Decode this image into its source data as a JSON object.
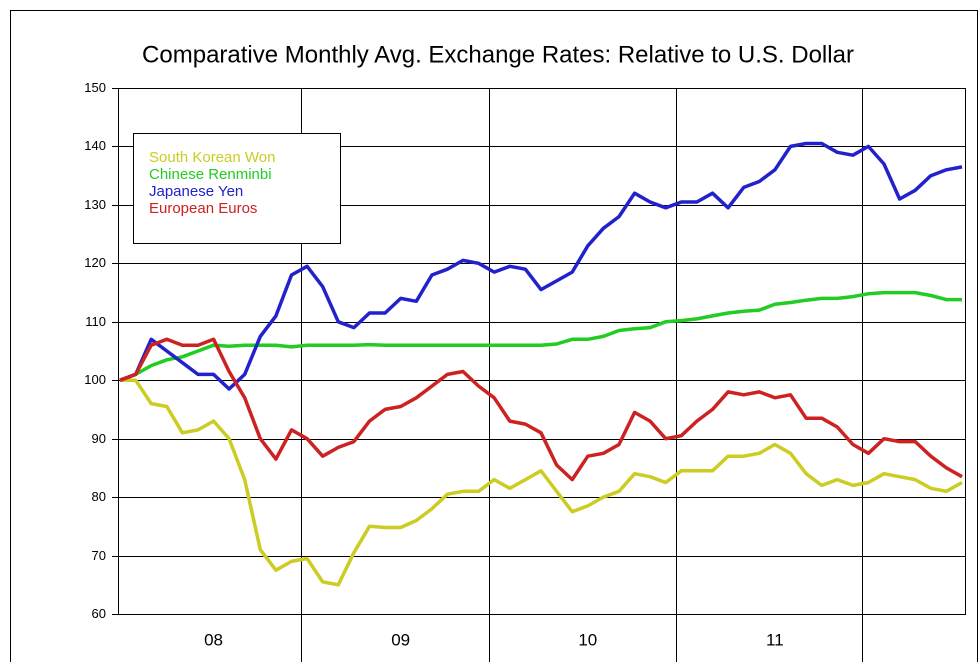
{
  "chart_data": {
    "type": "line",
    "title": "Comparative Monthly Avg. Exchange Rates: Relative to U.S. Dollar",
    "categories": [
      null,
      null,
      null,
      null,
      null,
      null,
      "08",
      null,
      null,
      null,
      null,
      null,
      null,
      null,
      null,
      null,
      null,
      null,
      "09",
      null,
      null,
      null,
      null,
      null,
      null,
      null,
      null,
      null,
      null,
      null,
      "10",
      null,
      null,
      null,
      null,
      null,
      null,
      null,
      null,
      null,
      null,
      null,
      "11",
      null,
      null,
      null,
      null,
      null,
      null,
      null,
      null,
      null,
      null,
      null,
      null
    ],
    "series": [
      {
        "name": "South Korean Won",
        "color": "#cccc22",
        "values": [
          100,
          100,
          96,
          95.5,
          91,
          91.5,
          93,
          90,
          83,
          71,
          67.5,
          69,
          69.5,
          65.5,
          65,
          70.5,
          75,
          74.8,
          74.8,
          76,
          78,
          80.5,
          81,
          81,
          83,
          81.5,
          83,
          84.5,
          81,
          77.5,
          78.5,
          80,
          81,
          84,
          83.5,
          82.5,
          84.5,
          84.5,
          84.5,
          87,
          87,
          87.5,
          89,
          87.5,
          84,
          82,
          83,
          82,
          82.5,
          84,
          83.5,
          83,
          81.5,
          81,
          82.5
        ]
      },
      {
        "name": "Chinese Renminbi",
        "color": "#22cc22",
        "values": [
          100,
          101,
          102.5,
          103.5,
          104,
          105,
          106,
          105.8,
          106,
          106,
          106,
          105.7,
          106,
          106,
          106,
          106,
          106.1,
          106,
          106,
          106,
          106,
          106,
          106,
          106,
          106,
          106,
          106,
          106,
          106.2,
          107,
          107,
          107.5,
          108.5,
          108.8,
          109,
          110,
          110.2,
          110.5,
          111,
          111.5,
          111.8,
          112,
          113,
          113.3,
          113.7,
          114,
          114,
          114.3,
          114.8,
          115,
          115,
          115,
          114.5,
          113.8,
          113.8
        ]
      },
      {
        "name": "Japanese Yen",
        "color": "#2222cc",
        "values": [
          100,
          101,
          107,
          105,
          103,
          101,
          101,
          98.5,
          101,
          107.5,
          111,
          118,
          119.5,
          116,
          110,
          109,
          111.5,
          111.5,
          114,
          113.5,
          118,
          119,
          120.5,
          120,
          118.5,
          119.5,
          119,
          115.5,
          117,
          118.5,
          123,
          126,
          128,
          132,
          130.5,
          129.5,
          130.5,
          130.5,
          132,
          129.5,
          133,
          134,
          136,
          140,
          140.5,
          140.5,
          139,
          138.5,
          140,
          137,
          131,
          132.5,
          135,
          136,
          136.5
        ]
      },
      {
        "name": "European Euros",
        "color": "#cc2222",
        "values": [
          100,
          101,
          106,
          107,
          106,
          106,
          107,
          101.5,
          97,
          90,
          86.5,
          91.5,
          90,
          87,
          88.5,
          89.5,
          93,
          95,
          95.5,
          97,
          99,
          101,
          101.5,
          99,
          97,
          93,
          92.5,
          91,
          85.5,
          83,
          87,
          87.5,
          89,
          94.5,
          93,
          90,
          90.5,
          93,
          95,
          98,
          97.5,
          98,
          97,
          97.5,
          93.5,
          93.5,
          92,
          89,
          87.5,
          90,
          89.5,
          89.5,
          87,
          85,
          83.5
        ]
      }
    ],
    "ylim": [
      60,
      150
    ],
    "yticks": [
      60,
      70,
      80,
      90,
      100,
      110,
      120,
      130,
      140,
      150
    ],
    "grid": true,
    "legend": "upper left"
  }
}
